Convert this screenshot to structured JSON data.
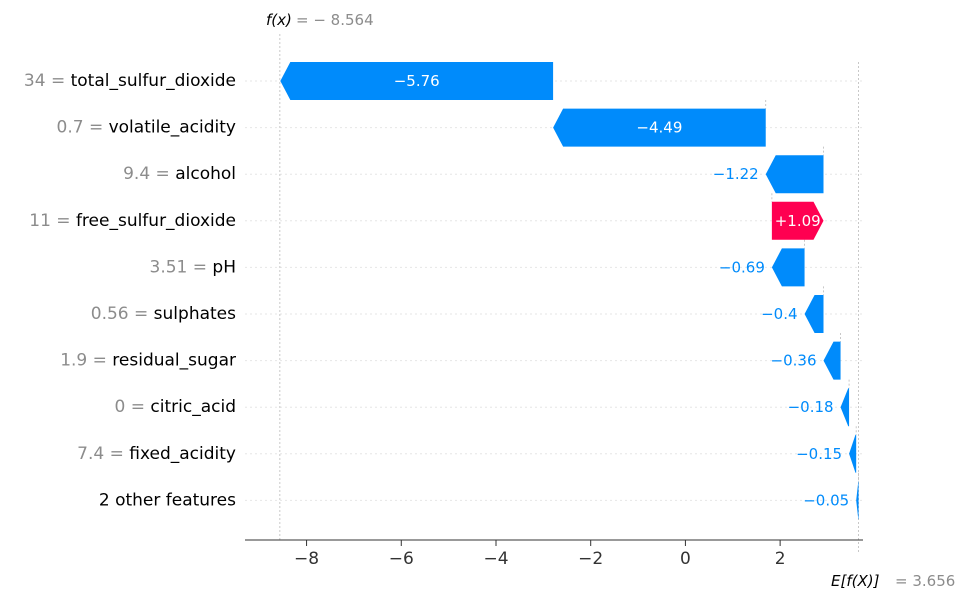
{
  "chart_data": {
    "type": "waterfall",
    "fx_label": "f(x)",
    "fx_value_text": "= − 8.564",
    "fx": -8.564,
    "efx_label": "E[f(X)]",
    "efx_value_text": "= 3.656",
    "base_value": 3.656,
    "xlim": [
      -9.3,
      3.75
    ],
    "xticks": [
      -8,
      -6,
      -4,
      -2,
      0,
      2
    ],
    "xtick_labels": [
      "−8",
      "−6",
      "−4",
      "−2",
      "0",
      "2"
    ],
    "features": [
      {
        "value": "34",
        "name": "total_sulfur_dioxide",
        "contribution": -5.76,
        "label": "−5.76"
      },
      {
        "value": "0.7",
        "name": "volatile_acidity",
        "contribution": -4.49,
        "label": "−4.49"
      },
      {
        "value": "9.4",
        "name": "alcohol",
        "contribution": -1.22,
        "label": "−1.22"
      },
      {
        "value": "11",
        "name": "free_sulfur_dioxide",
        "contribution": 1.09,
        "label": "+1.09"
      },
      {
        "value": "3.51",
        "name": "pH",
        "contribution": -0.69,
        "label": "−0.69"
      },
      {
        "value": "0.56",
        "name": "sulphates",
        "contribution": -0.4,
        "label": "−0.4"
      },
      {
        "value": "1.9",
        "name": "residual_sugar",
        "contribution": -0.36,
        "label": "−0.36"
      },
      {
        "value": "0",
        "name": "citric_acid",
        "contribution": -0.18,
        "label": "−0.18"
      },
      {
        "value": "7.4",
        "name": "fixed_acidity",
        "contribution": -0.15,
        "label": "−0.15"
      },
      {
        "value": "",
        "name": "2 other features",
        "contribution": -0.05,
        "label": "−0.05"
      }
    ],
    "colors": {
      "negative": "#008bfb",
      "positive": "#ff0051"
    }
  }
}
